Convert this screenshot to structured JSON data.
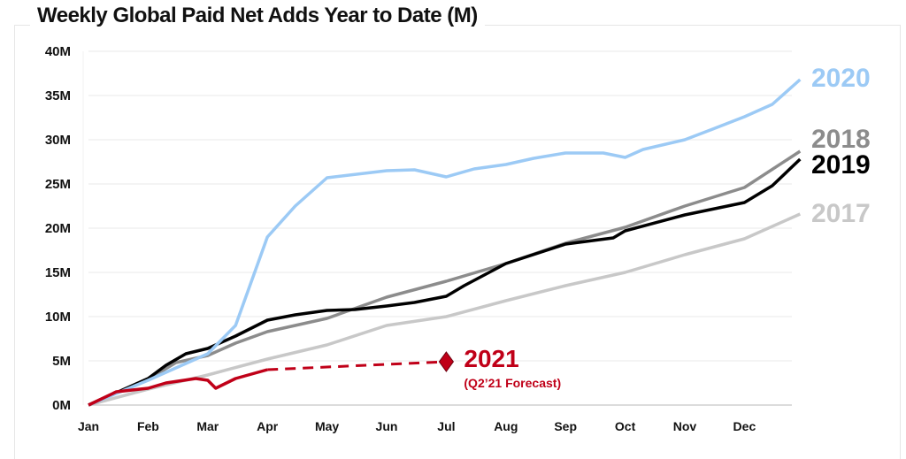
{
  "chart_data": {
    "type": "line",
    "title": "Weekly Global Paid Net Adds Year to Date (M)",
    "xlabel": "",
    "ylabel": "",
    "x_tick_labels": [
      "Jan",
      "Feb",
      "Mar",
      "Apr",
      "May",
      "Jun",
      "Jul",
      "Aug",
      "Sep",
      "Oct",
      "Nov",
      "Dec"
    ],
    "y_tick_labels": [
      "0M",
      "5M",
      "10M",
      "15M",
      "20M",
      "25M",
      "30M",
      "35M",
      "40M"
    ],
    "ylim": [
      0,
      40
    ],
    "grid": true,
    "legend": "direct labels at right end of lines",
    "series": [
      {
        "name": "2017",
        "color": "#c8c8c8",
        "points": [
          [
            "01-01",
            0
          ],
          [
            "02-01",
            1.8
          ],
          [
            "03-01",
            3.4
          ],
          [
            "04-01",
            5.2
          ],
          [
            "05-01",
            6.8
          ],
          [
            "06-01",
            9.0
          ],
          [
            "07-01",
            10.0
          ],
          [
            "08-01",
            11.8
          ],
          [
            "09-01",
            13.5
          ],
          [
            "10-01",
            15.0
          ],
          [
            "11-01",
            17.0
          ],
          [
            "12-01",
            18.8
          ],
          [
            "12-29",
            21.6
          ]
        ]
      },
      {
        "name": "2018",
        "color": "#8c8c8c",
        "points": [
          [
            "01-01",
            0
          ],
          [
            "02-01",
            2.9
          ],
          [
            "02-15",
            4.8
          ],
          [
            "03-01",
            5.6
          ],
          [
            "03-15",
            7.0
          ],
          [
            "04-01",
            8.3
          ],
          [
            "05-01",
            9.8
          ],
          [
            "06-01",
            12.2
          ],
          [
            "07-01",
            14.0
          ],
          [
            "08-01",
            16.0
          ],
          [
            "09-01",
            18.3
          ],
          [
            "10-01",
            20.1
          ],
          [
            "11-01",
            22.5
          ],
          [
            "12-01",
            24.6
          ],
          [
            "12-29",
            28.7
          ]
        ]
      },
      {
        "name": "2019",
        "color": "#000000",
        "points": [
          [
            "01-01",
            0
          ],
          [
            "02-01",
            3.0
          ],
          [
            "02-10",
            4.5
          ],
          [
            "02-20",
            5.8
          ],
          [
            "03-01",
            6.4
          ],
          [
            "03-15",
            7.8
          ],
          [
            "04-01",
            9.6
          ],
          [
            "04-15",
            10.2
          ],
          [
            "05-01",
            10.7
          ],
          [
            "05-15",
            10.8
          ],
          [
            "06-01",
            11.2
          ],
          [
            "06-15",
            11.6
          ],
          [
            "07-01",
            12.3
          ],
          [
            "07-10",
            13.5
          ],
          [
            "08-01",
            16.0
          ],
          [
            "09-01",
            18.2
          ],
          [
            "09-25",
            18.9
          ],
          [
            "10-01",
            19.7
          ],
          [
            "11-01",
            21.5
          ],
          [
            "12-01",
            22.9
          ],
          [
            "12-15",
            24.8
          ],
          [
            "12-29",
            27.8
          ]
        ]
      },
      {
        "name": "2020",
        "color": "#9ccaf5",
        "points": [
          [
            "01-01",
            0
          ],
          [
            "02-01",
            2.8
          ],
          [
            "03-01",
            5.8
          ],
          [
            "03-15",
            9.0
          ],
          [
            "04-01",
            19.0
          ],
          [
            "04-15",
            22.5
          ],
          [
            "05-01",
            25.7
          ],
          [
            "06-01",
            26.5
          ],
          [
            "06-15",
            26.6
          ],
          [
            "07-01",
            25.8
          ],
          [
            "07-15",
            26.7
          ],
          [
            "08-01",
            27.2
          ],
          [
            "08-15",
            27.9
          ],
          [
            "09-01",
            28.5
          ],
          [
            "09-20",
            28.5
          ],
          [
            "10-01",
            28.0
          ],
          [
            "10-10",
            28.9
          ],
          [
            "11-01",
            30.0
          ],
          [
            "11-15",
            31.2
          ],
          [
            "12-01",
            32.6
          ],
          [
            "12-15",
            34.0
          ],
          [
            "12-29",
            36.8
          ]
        ]
      },
      {
        "name": "2021",
        "color": "#c00018",
        "points": [
          [
            "01-01",
            0
          ],
          [
            "01-15",
            1.5
          ],
          [
            "02-01",
            1.9
          ],
          [
            "02-10",
            2.5
          ],
          [
            "02-25",
            3.0
          ],
          [
            "03-01",
            2.8
          ],
          [
            "03-05",
            1.9
          ],
          [
            "03-15",
            3.0
          ],
          [
            "04-01",
            4.0
          ]
        ],
        "forecast": {
          "label": "(Q2’21 Forecast)",
          "points": [
            [
              "04-01",
              4.0
            ],
            [
              "07-01",
              4.9
            ]
          ]
        }
      }
    ]
  }
}
